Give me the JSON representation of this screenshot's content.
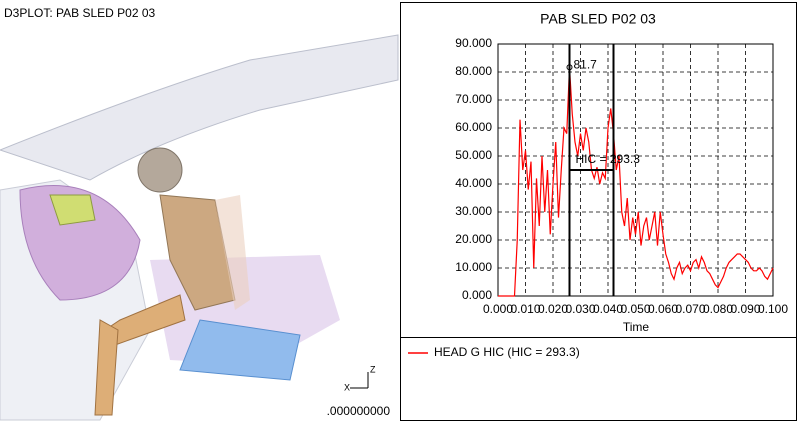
{
  "viewport": {
    "title": "D3PLOT: PAB SLED P02 03",
    "time": ".000000000",
    "axis_z": "Z",
    "axis_x": "X"
  },
  "chart_data": {
    "type": "line",
    "title": "PAB SLED P02 03",
    "xlabel": "Time",
    "x": [
      0,
      0.001,
      0.002,
      0.003,
      0.004,
      0.005,
      0.006,
      0.007,
      0.008,
      0.009,
      0.01,
      0.011,
      0.012,
      0.013,
      0.014,
      0.015,
      0.016,
      0.017,
      0.018,
      0.019,
      0.02,
      0.021,
      0.022,
      0.023,
      0.024,
      0.025,
      0.026,
      0.027,
      0.028,
      0.029,
      0.03,
      0.031,
      0.032,
      0.033,
      0.034,
      0.035,
      0.036,
      0.037,
      0.038,
      0.039,
      0.04,
      0.041,
      0.042,
      0.043,
      0.044,
      0.045,
      0.046,
      0.047,
      0.048,
      0.049,
      0.05,
      0.051,
      0.052,
      0.053,
      0.054,
      0.055,
      0.056,
      0.057,
      0.058,
      0.059,
      0.06,
      0.061,
      0.062,
      0.063,
      0.064,
      0.065,
      0.066,
      0.067,
      0.068,
      0.069,
      0.07,
      0.071,
      0.072,
      0.073,
      0.074,
      0.075,
      0.076,
      0.077,
      0.078,
      0.079,
      0.08,
      0.081,
      0.082,
      0.083,
      0.084,
      0.085,
      0.086,
      0.087,
      0.088,
      0.089,
      0.09,
      0.091,
      0.092,
      0.093,
      0.094,
      0.095,
      0.096,
      0.097,
      0.098,
      0.099,
      0.1
    ],
    "series": [
      {
        "name": "HEAD G HIC (HIC = 293.3)",
        "color": "#ff0000",
        "values": [
          0,
          0,
          0,
          0,
          0,
          0,
          0,
          20,
          63,
          45,
          52,
          38,
          48,
          10,
          42,
          25,
          50,
          30,
          45,
          22,
          40,
          55,
          28,
          45,
          60,
          58,
          81.7,
          65,
          55,
          50,
          58,
          52,
          60,
          55,
          45,
          42,
          46,
          40,
          44,
          42,
          60,
          67,
          58,
          45,
          50,
          30,
          25,
          35,
          20,
          28,
          22,
          30,
          18,
          25,
          28,
          20,
          25,
          30,
          18,
          30,
          22,
          15,
          12,
          8,
          6,
          10,
          12,
          8,
          10,
          11,
          9,
          12,
          13,
          10,
          14,
          12,
          9,
          8,
          6,
          4,
          3,
          5,
          7,
          10,
          12,
          13,
          14,
          15,
          15,
          14,
          13,
          12,
          10,
          9,
          9,
          10,
          9,
          7,
          6,
          8,
          10
        ]
      }
    ],
    "annotations": [
      {
        "text": "81.7",
        "x": 0.026,
        "y": 81.7
      },
      {
        "text": "HIC = 293.3",
        "x": [
          0.026,
          0.042
        ],
        "y": 45
      }
    ],
    "xlim": [
      0,
      0.1
    ],
    "ylim": [
      0,
      90
    ],
    "xticks": [
      {
        "value": 0,
        "label": "0.000"
      },
      {
        "value": 0.01,
        "label": "0.010"
      },
      {
        "value": 0.02,
        "label": "0.020"
      },
      {
        "value": 0.03,
        "label": "0.030"
      },
      {
        "value": 0.04,
        "label": "0.040"
      },
      {
        "value": 0.05,
        "label": "0.050"
      },
      {
        "value": 0.06,
        "label": "0.060"
      },
      {
        "value": 0.07,
        "label": "0.070"
      },
      {
        "value": 0.08,
        "label": "0.080"
      },
      {
        "value": 0.09,
        "label": "0.090"
      },
      {
        "value": 0.1,
        "label": "0.100"
      }
    ],
    "yticks": [
      {
        "value": 0,
        "label": "0.000"
      },
      {
        "value": 10,
        "label": "10.000"
      },
      {
        "value": 20,
        "label": "20.000"
      },
      {
        "value": 30,
        "label": "30.000"
      },
      {
        "value": 40,
        "label": "40.000"
      },
      {
        "value": 50,
        "label": "50.000"
      },
      {
        "value": 60,
        "label": "60.000"
      },
      {
        "value": 70,
        "label": "70.000"
      },
      {
        "value": 80,
        "label": "80.000"
      },
      {
        "value": 90,
        "label": "90.000"
      }
    ],
    "grid": true
  }
}
